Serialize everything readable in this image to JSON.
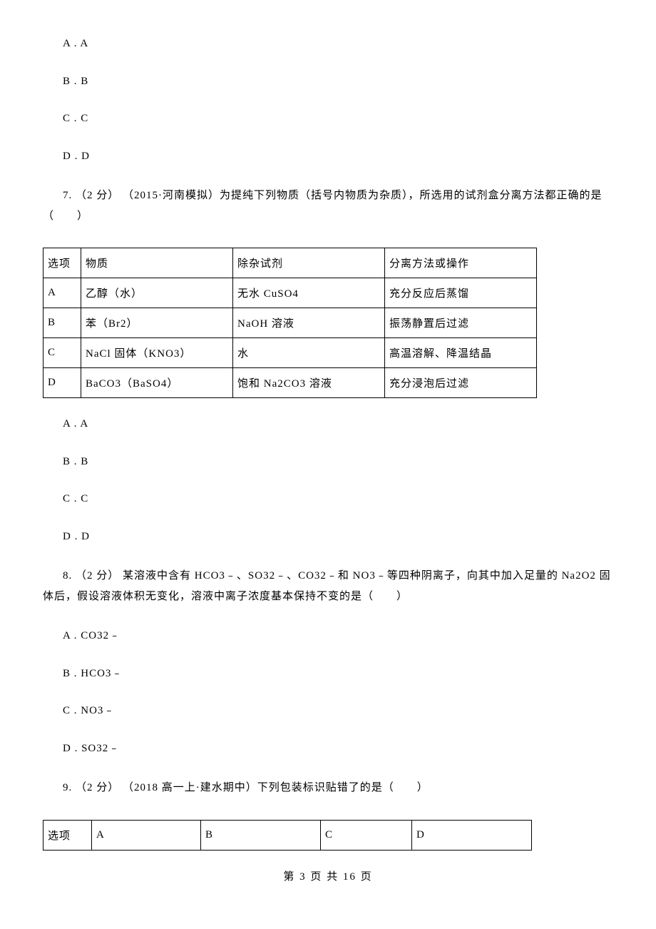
{
  "pre_options": {
    "a": "A . A",
    "b": "B . B",
    "c": "C . C",
    "d": "D . D"
  },
  "q7": {
    "text": "7. （2 分） （2015·河南模拟）为提纯下列物质（括号内物质为杂质），所选用的试剂盒分离方法都正确的是（　　）",
    "table": {
      "header": [
        "选项",
        "物质",
        "除杂试剂",
        "分离方法或操作"
      ],
      "rows": [
        [
          "A",
          "乙醇（水）",
          "无水 CuSO4",
          "充分反应后蒸馏"
        ],
        [
          "B",
          "苯（Br2）",
          "NaOH 溶液",
          "振荡静置后过滤"
        ],
        [
          "C",
          "NaCl 固体（KNO3）",
          "水",
          "高温溶解、降温结晶"
        ],
        [
          "D",
          "BaCO3（BaSO4）",
          "饱和 Na2CO3 溶液",
          "充分浸泡后过滤"
        ]
      ]
    },
    "options": {
      "a": "A . A",
      "b": "B . B",
      "c": "C . C",
      "d": "D . D"
    }
  },
  "q8": {
    "text": "8. （2 分） 某溶液中含有 HCO3﹣、SO32﹣、CO32﹣和 NO3﹣等四种阴离子，向其中加入足量的 Na2O2 固体后，假设溶液体积无变化，溶液中离子浓度基本保持不变的是（　　）",
    "options": {
      "a": "A . CO32﹣",
      "b": "B . HCO3﹣",
      "c": "C . NO3﹣",
      "d": "D . SO32﹣"
    }
  },
  "q9": {
    "text": "9. （2 分） （2018 高一上·建水期中）下列包装标识贴错了的是（　　）",
    "table": {
      "header": [
        "选项",
        "A",
        "B",
        "C",
        "D"
      ]
    }
  },
  "footer": "第 3 页 共 16 页"
}
